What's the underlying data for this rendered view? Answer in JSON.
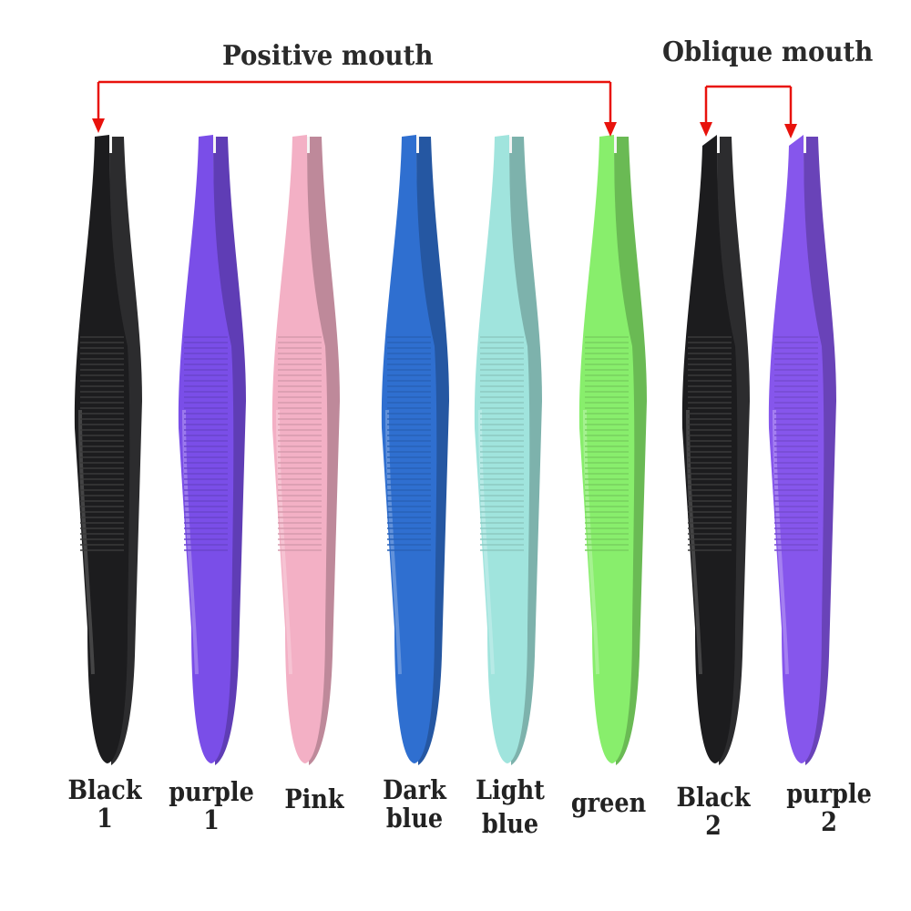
{
  "headers": {
    "positive": "Positive mouth",
    "oblique": "Oblique mouth"
  },
  "arrow_color": "#e8120c",
  "tweezers": [
    {
      "name": "Black",
      "num": "1",
      "color": "#1c1c1e",
      "mouth": "positive"
    },
    {
      "name": "purple",
      "num": "1",
      "color": "#7a4ee8",
      "mouth": "positive"
    },
    {
      "name": "Pink",
      "num": "",
      "color": "#f3b0c5",
      "mouth": "positive"
    },
    {
      "name": "Dark",
      "num": "blue",
      "color": "#2f6fd0",
      "mouth": "positive"
    },
    {
      "name": "Light",
      "num": "blue",
      "color": "#a0e4dd",
      "mouth": "positive"
    },
    {
      "name": "green",
      "num": "",
      "color": "#88ee6c",
      "mouth": "positive"
    },
    {
      "name": "Black",
      "num": "2",
      "color": "#1c1c1e",
      "mouth": "oblique"
    },
    {
      "name": "purple",
      "num": "2",
      "color": "#8656ec",
      "mouth": "oblique"
    }
  ]
}
